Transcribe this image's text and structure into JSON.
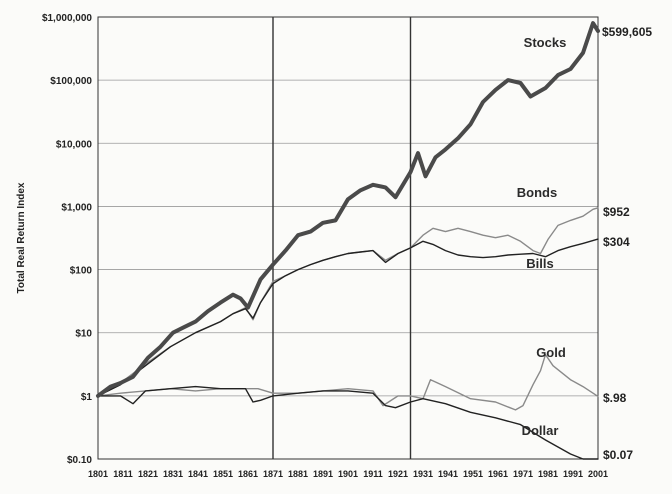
{
  "chart_data": {
    "type": "line",
    "title": "",
    "ylabel": "Total Real Return Index",
    "xlabel": "",
    "y_scale": "log",
    "xlim": [
      1801,
      2001
    ],
    "ylim": [
      0.1,
      1000000
    ],
    "y_tick_values": [
      0.1,
      1,
      10,
      100,
      1000,
      10000,
      100000,
      1000000
    ],
    "y_tick_labels": [
      "$0.10",
      "$1",
      "$10",
      "$100",
      "$1,000",
      "$10,000",
      "$100,000",
      "$1,000,000"
    ],
    "x_ticks": [
      "1801",
      "1811",
      "1821",
      "1831",
      "1841",
      "1851",
      "1861",
      "1871",
      "1881",
      "1891",
      "1901",
      "1911",
      "1921",
      "1931",
      "1941",
      "1951",
      "1961",
      "1971",
      "1981",
      "1991",
      "2001"
    ],
    "vertical_markers": [
      1871,
      1926
    ],
    "grid": "horizontal",
    "series": [
      {
        "name": "Stocks",
        "end_label": "$599,605",
        "color": "#4a4a4a",
        "width": 4,
        "x": [
          1801,
          1806,
          1810,
          1815,
          1821,
          1826,
          1831,
          1835,
          1840,
          1845,
          1850,
          1855,
          1858,
          1861,
          1866,
          1871,
          1876,
          1881,
          1886,
          1891,
          1896,
          1901,
          1906,
          1911,
          1916,
          1920,
          1926,
          1929,
          1932,
          1936,
          1940,
          1945,
          1950,
          1955,
          1960,
          1965,
          1970,
          1974,
          1980,
          1985,
          1990,
          1995,
          1999,
          2001
        ],
        "values": [
          1,
          1.4,
          1.6,
          2,
          4,
          6,
          10,
          12,
          15,
          22,
          30,
          40,
          35,
          25,
          70,
          120,
          200,
          350,
          400,
          550,
          600,
          1300,
          1800,
          2200,
          2000,
          1400,
          3500,
          7000,
          3000,
          6000,
          8000,
          12000,
          20000,
          45000,
          70000,
          100000,
          90000,
          55000,
          75000,
          120000,
          150000,
          270000,
          800000,
          599605
        ]
      },
      {
        "name": "Bonds",
        "end_label": "$952",
        "color": "#8a8a8a",
        "width": 1.4,
        "x": [
          1801,
          1810,
          1820,
          1830,
          1840,
          1850,
          1855,
          1860,
          1863,
          1866,
          1871,
          1876,
          1881,
          1886,
          1891,
          1896,
          1901,
          1906,
          1911,
          1916,
          1921,
          1926,
          1931,
          1935,
          1940,
          1945,
          1950,
          1955,
          1960,
          1965,
          1970,
          1975,
          1978,
          1981,
          1985,
          1990,
          1995,
          1999,
          2001
        ],
        "values": [
          1,
          1.6,
          3.2,
          6,
          10,
          15,
          20,
          25,
          16,
          30,
          65,
          80,
          100,
          120,
          140,
          160,
          180,
          190,
          200,
          140,
          180,
          220,
          350,
          450,
          400,
          450,
          400,
          350,
          320,
          350,
          280,
          200,
          180,
          300,
          500,
          600,
          700,
          900,
          952
        ]
      },
      {
        "name": "Bills",
        "end_label": "$304",
        "color": "#222222",
        "width": 1.4,
        "x": [
          1801,
          1810,
          1820,
          1830,
          1840,
          1850,
          1855,
          1860,
          1863,
          1866,
          1871,
          1876,
          1881,
          1886,
          1891,
          1896,
          1901,
          1906,
          1911,
          1916,
          1921,
          1926,
          1931,
          1935,
          1940,
          1945,
          1950,
          1955,
          1960,
          1965,
          1970,
          1975,
          1980,
          1985,
          1990,
          1995,
          2001
        ],
        "values": [
          1,
          1.5,
          3,
          6,
          10,
          15,
          20,
          24,
          17,
          30,
          60,
          80,
          100,
          120,
          140,
          160,
          180,
          190,
          200,
          130,
          180,
          220,
          280,
          250,
          200,
          170,
          160,
          155,
          160,
          170,
          175,
          180,
          160,
          200,
          230,
          260,
          304
        ]
      },
      {
        "name": "Gold",
        "end_label": "$.98",
        "color": "#8a8a8a",
        "width": 1.4,
        "x": [
          1801,
          1810,
          1820,
          1830,
          1840,
          1850,
          1860,
          1865,
          1871,
          1881,
          1891,
          1901,
          1911,
          1915,
          1921,
          1926,
          1931,
          1934,
          1940,
          1950,
          1960,
          1968,
          1971,
          1975,
          1978,
          1980,
          1983,
          1990,
          1995,
          2001
        ],
        "values": [
          1,
          1.1,
          1.2,
          1.3,
          1.2,
          1.3,
          1.3,
          1.3,
          1.1,
          1.1,
          1.2,
          1.3,
          1.2,
          0.7,
          1.0,
          1.0,
          0.9,
          1.8,
          1.4,
          0.9,
          0.8,
          0.6,
          0.7,
          1.5,
          2.5,
          4.5,
          3,
          1.8,
          1.4,
          0.98
        ]
      },
      {
        "name": "Dollar",
        "end_label": "$0.07",
        "color": "#222222",
        "width": 1.4,
        "x": [
          1801,
          1810,
          1815,
          1820,
          1830,
          1840,
          1850,
          1860,
          1863,
          1866,
          1871,
          1881,
          1891,
          1901,
          1911,
          1916,
          1920,
          1926,
          1931,
          1940,
          1950,
          1960,
          1970,
          1980,
          1990,
          1995,
          2001
        ],
        "values": [
          1,
          1.0,
          0.75,
          1.2,
          1.3,
          1.4,
          1.3,
          1.3,
          0.8,
          0.85,
          1.0,
          1.1,
          1.2,
          1.2,
          1.1,
          0.7,
          0.65,
          0.8,
          0.9,
          0.75,
          0.55,
          0.45,
          0.35,
          0.2,
          0.12,
          0.1,
          0.07
        ]
      }
    ]
  }
}
